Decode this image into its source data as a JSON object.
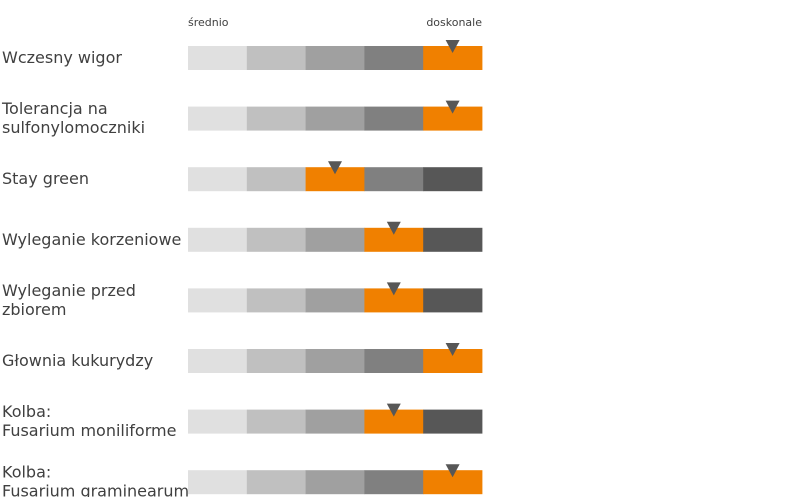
{
  "chart_data": {
    "type": "bar",
    "scale_labels": {
      "low": "średnio",
      "high": "doskonale"
    },
    "segment_count": 5,
    "colors": {
      "segments": [
        "#e0e0e0",
        "#c0c0c0",
        "#a0a0a0",
        "#808080",
        "#575757"
      ],
      "highlight": "#f08000",
      "marker": "#575757"
    },
    "categories": [
      {
        "lines": [
          "Wczesny wigor"
        ],
        "value": 5
      },
      {
        "lines": [
          "Tolerancja na",
          "sulfonylomoczniki"
        ],
        "value": 5
      },
      {
        "lines": [
          "Stay green"
        ],
        "value": 3
      },
      {
        "lines": [
          "Wyleganie korzeniowe"
        ],
        "value": 4
      },
      {
        "lines": [
          "Wyleganie przed",
          "zbiorem"
        ],
        "value": 4
      },
      {
        "lines": [
          "Głownia kukurydzy"
        ],
        "value": 5
      },
      {
        "lines": [
          "Kolba:",
          "Fusarium moniliforme"
        ],
        "value": 4
      },
      {
        "lines": [
          "Kolba:",
          "Fusarium graminearum"
        ],
        "value": 5
      }
    ]
  }
}
